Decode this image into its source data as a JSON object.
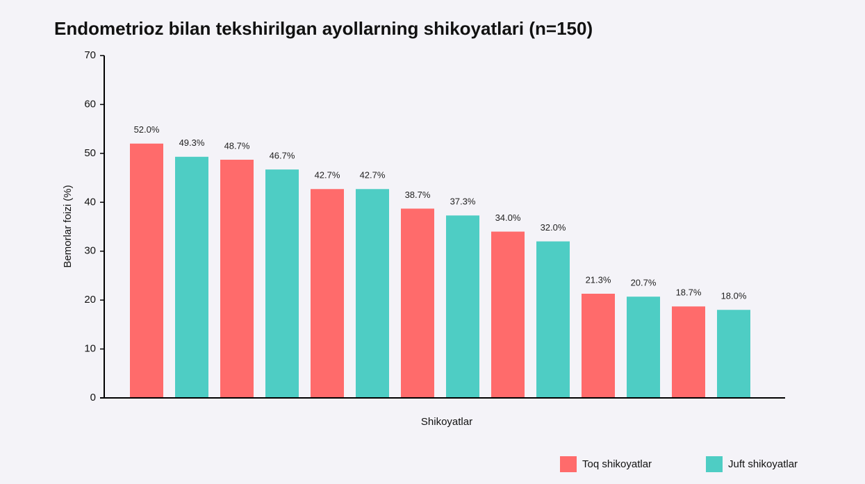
{
  "chart_data": {
    "type": "bar",
    "title": "Endometrioz bilan tekshirilgan ayollarning shikoyatlari (n=150)",
    "x_label": "Shikoyatlar",
    "y_label": "Bemorlar foizi (%)",
    "categories": [
      null,
      null,
      null,
      null,
      null,
      null,
      null,
      null,
      null,
      null,
      null,
      null,
      null,
      null
    ],
    "series": [
      {
        "name": "Toq shikoyatlar",
        "color": "#ff6b6b",
        "values": [
          52.0,
          null,
          48.7,
          null,
          42.7,
          null,
          38.7,
          null,
          34.0,
          null,
          21.3,
          null,
          18.7,
          null
        ],
        "value_labels": [
          "52.0%",
          null,
          "48.7%",
          null,
          "42.7%",
          null,
          "38.7%",
          null,
          "34.0%",
          null,
          "21.3%",
          null,
          "18.7%",
          null
        ]
      },
      {
        "name": "Juft shikoyatlar",
        "color": "#4ecdc4",
        "values": [
          null,
          49.3,
          null,
          46.7,
          null,
          42.7,
          null,
          37.3,
          null,
          32.0,
          null,
          20.7,
          null,
          18.0
        ],
        "value_labels": [
          null,
          "49.3%",
          null,
          "46.7%",
          null,
          "42.7%",
          null,
          "37.3%",
          null,
          "32.0%",
          null,
          "20.7%",
          null,
          "18.0%"
        ]
      }
    ],
    "ylim": [
      0,
      70
    ],
    "yticks": [
      0,
      10,
      20,
      30,
      40,
      50,
      60,
      70
    ],
    "grid": false,
    "legend": "bottom-right"
  }
}
